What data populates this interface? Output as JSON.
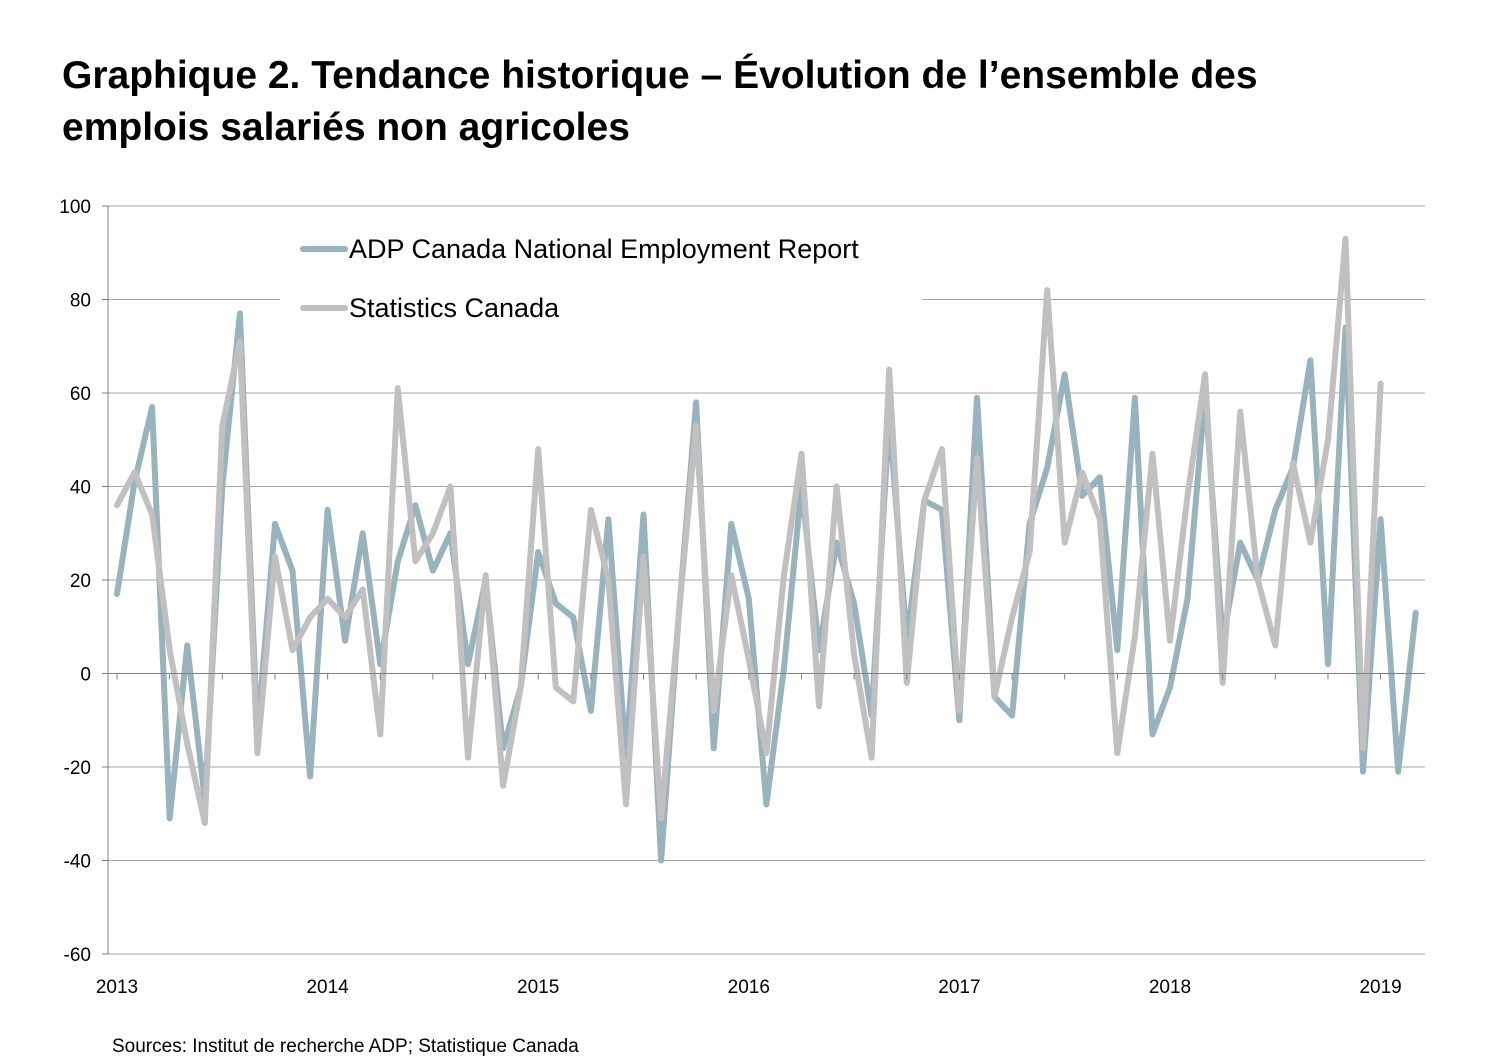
{
  "title_lines": [
    "Graphique 2. Tendance historique – Évolution de l’ensemble des",
    "emplois salariés non agricoles"
  ],
  "source": "Sources: Institut de recherche ADP; Statistique Canada",
  "colors": {
    "adp": "#98b2be",
    "statcan": "#c0c0c0",
    "grid": "#a6a6a6",
    "axis": "#808080"
  },
  "chart_data": {
    "type": "line",
    "ylim": [
      -60,
      100
    ],
    "yticks": [
      -60,
      -40,
      -20,
      0,
      20,
      40,
      60,
      80,
      100
    ],
    "grid": true,
    "legend_position": "top-left",
    "x_start_month": 0,
    "x_end_month": 74.5,
    "x_year_labels": [
      {
        "label": "2013",
        "month": 0
      },
      {
        "label": "2014",
        "month": 12
      },
      {
        "label": "2015",
        "month": 24
      },
      {
        "label": "2016",
        "month": 36
      },
      {
        "label": "2017",
        "month": 48
      },
      {
        "label": "2018",
        "month": 60
      },
      {
        "label": "2019",
        "month": 72
      }
    ],
    "series": [
      {
        "name": "ADP Canada National Employment Report",
        "values": [
          17,
          41,
          57,
          -31,
          6,
          -27,
          40,
          77,
          -13,
          32,
          22,
          -22,
          35,
          7,
          30,
          2,
          24,
          36,
          22,
          30,
          2,
          20,
          -16,
          -3,
          26,
          15,
          12,
          -8,
          33,
          -18,
          34,
          -40,
          12,
          58,
          -16,
          32,
          16,
          -28,
          1,
          40,
          5,
          28,
          15,
          -9,
          55,
          7,
          37,
          35,
          -10,
          59,
          -5,
          -9,
          32,
          44,
          64,
          38,
          42,
          5,
          59,
          -13,
          -3,
          16,
          60,
          7,
          28,
          20,
          35,
          44,
          67,
          2,
          74,
          -21,
          33,
          -21,
          13
        ]
      },
      {
        "name": "Statistics Canada",
        "values": [
          36,
          43,
          34,
          5,
          -15,
          -32,
          53,
          71,
          -17,
          25,
          5,
          12,
          16,
          12,
          18,
          -13,
          61,
          24,
          30,
          40,
          -18,
          21,
          -24,
          -3,
          48,
          -3,
          -6,
          35,
          20,
          -28,
          25,
          -31,
          12,
          53,
          -8,
          21,
          3,
          -17,
          21,
          47,
          -7,
          40,
          4,
          -18,
          65,
          -2,
          37,
          48,
          -8,
          46,
          -5,
          12,
          26,
          82,
          28,
          43,
          33,
          -17,
          8,
          47,
          7,
          38,
          64,
          -2,
          56,
          20,
          6,
          45,
          28,
          50,
          93,
          -16,
          62
        ]
      }
    ]
  }
}
